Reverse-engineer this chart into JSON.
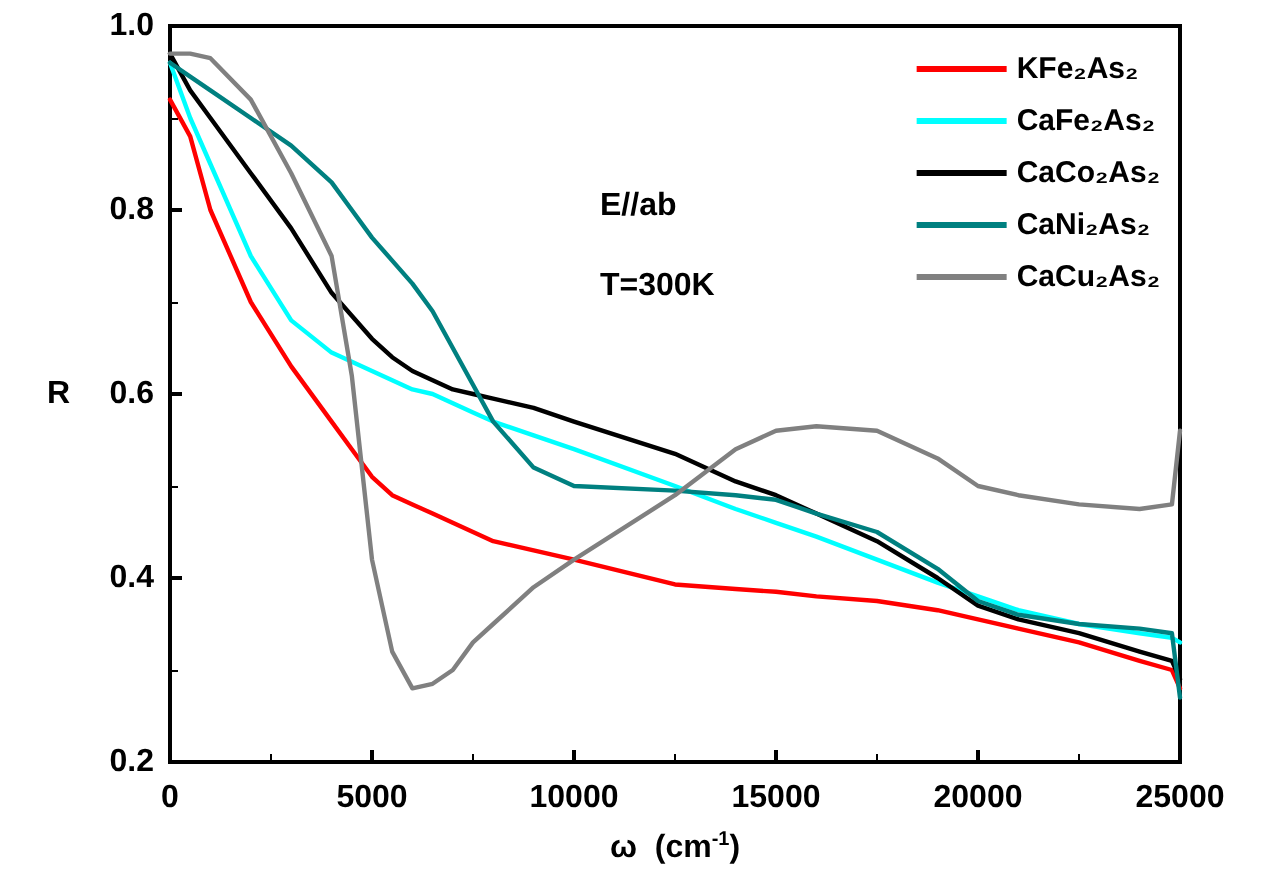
{
  "chart_data": {
    "type": "line",
    "xlabel": "ω  (cm$^{-1}$)",
    "ylabel": "R",
    "annotations": [
      "E//ab",
      "T=300K"
    ],
    "xlim": [
      0,
      25000
    ],
    "xticks": [
      0,
      5000,
      10000,
      15000,
      20000,
      25000
    ],
    "ylim": [
      0.2,
      1.0
    ],
    "yticks": [
      0.2,
      0.4,
      0.6,
      0.8,
      {
        "value": 1.0,
        "label": "1.0"
      }
    ],
    "grid": false,
    "legend": "top right",
    "marker": "none",
    "line_style": "solid",
    "x": [
      0,
      500,
      1000,
      2000,
      3000,
      4000,
      4500,
      5000,
      5500,
      6000,
      6500,
      7000,
      7500,
      8000,
      9000,
      10000,
      12500,
      14000,
      15000,
      16000,
      17500,
      19000,
      20000,
      21000,
      22500,
      24000,
      24800,
      25000
    ],
    "series": [
      {
        "name": "KFe₂As₂",
        "color": "#ff0000",
        "values": [
          0.92,
          0.88,
          0.8,
          0.7,
          0.63,
          0.57,
          0.54,
          0.51,
          0.49,
          0.48,
          0.47,
          0.46,
          0.45,
          0.44,
          0.43,
          0.42,
          0.393,
          0.388,
          0.385,
          0.38,
          0.375,
          0.365,
          0.355,
          0.345,
          0.33,
          0.31,
          0.3,
          0.28
        ]
      },
      {
        "name": "CaFe₂As₂",
        "color": "#00ffff",
        "values": [
          0.96,
          0.9,
          0.85,
          0.75,
          0.68,
          0.645,
          0.635,
          0.625,
          0.615,
          0.605,
          0.6,
          0.59,
          0.58,
          0.57,
          0.555,
          0.54,
          0.5,
          0.475,
          0.46,
          0.445,
          0.42,
          0.395,
          0.38,
          0.365,
          0.35,
          0.34,
          0.335,
          0.33
        ]
      },
      {
        "name": "CaCo₂As₂",
        "color": "#000000",
        "values": [
          0.97,
          0.93,
          0.9,
          0.84,
          0.78,
          0.71,
          0.685,
          0.66,
          0.64,
          0.625,
          0.615,
          0.605,
          0.6,
          0.595,
          0.585,
          0.57,
          0.535,
          0.505,
          0.49,
          0.47,
          0.44,
          0.4,
          0.37,
          0.355,
          0.34,
          0.32,
          0.31,
          0.29
        ]
      },
      {
        "name": "CaNi₂As₂",
        "color": "#008080",
        "values": [
          0.96,
          0.945,
          0.93,
          0.9,
          0.87,
          0.83,
          0.8,
          0.77,
          0.745,
          0.72,
          0.69,
          0.65,
          0.61,
          0.57,
          0.52,
          0.5,
          0.495,
          0.49,
          0.485,
          0.47,
          0.45,
          0.41,
          0.375,
          0.36,
          0.35,
          0.345,
          0.34,
          0.27
        ]
      },
      {
        "name": "CaCu₂As₂",
        "color": "#808080",
        "values": [
          0.97,
          0.97,
          0.965,
          0.92,
          0.84,
          0.75,
          0.62,
          0.42,
          0.32,
          0.28,
          0.285,
          0.3,
          0.33,
          0.35,
          0.39,
          0.42,
          0.49,
          0.54,
          0.56,
          0.565,
          0.56,
          0.53,
          0.5,
          0.49,
          0.48,
          0.475,
          0.48,
          0.56
        ]
      }
    ]
  }
}
